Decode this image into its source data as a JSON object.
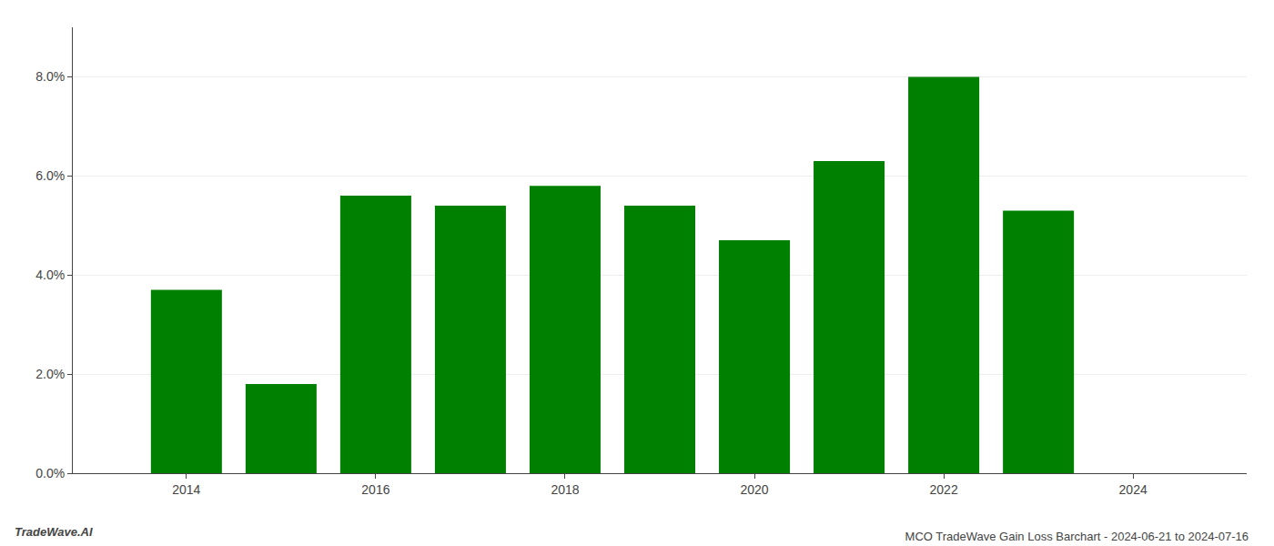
{
  "chart_data": {
    "type": "bar",
    "title": "MCO TradeWave Gain Loss Barchart - 2024-06-21 to 2024-07-16",
    "annotations": [
      "TradeWave.AI"
    ],
    "x": [
      2014,
      2015,
      2016,
      2017,
      2018,
      2019,
      2020,
      2021,
      2022,
      2023
    ],
    "values": [
      0.037,
      0.018,
      0.056,
      0.054,
      0.058,
      0.054,
      0.047,
      0.063,
      0.08,
      0.053
    ],
    "color": "#008000",
    "xlim": [
      2012.8,
      2025.2
    ],
    "xticks": [
      2014,
      2016,
      2018,
      2020,
      2022,
      2024
    ],
    "ylim": [
      0,
      0.09
    ],
    "yticks": [
      {
        "value": 0.0,
        "label": "0.0%"
      },
      {
        "value": 0.02,
        "label": "2.0%"
      },
      {
        "value": 0.04,
        "label": "4.0%"
      },
      {
        "value": 0.06,
        "label": "6.0%"
      },
      {
        "value": 0.08,
        "label": "8.0%"
      }
    ],
    "grid": "y"
  }
}
